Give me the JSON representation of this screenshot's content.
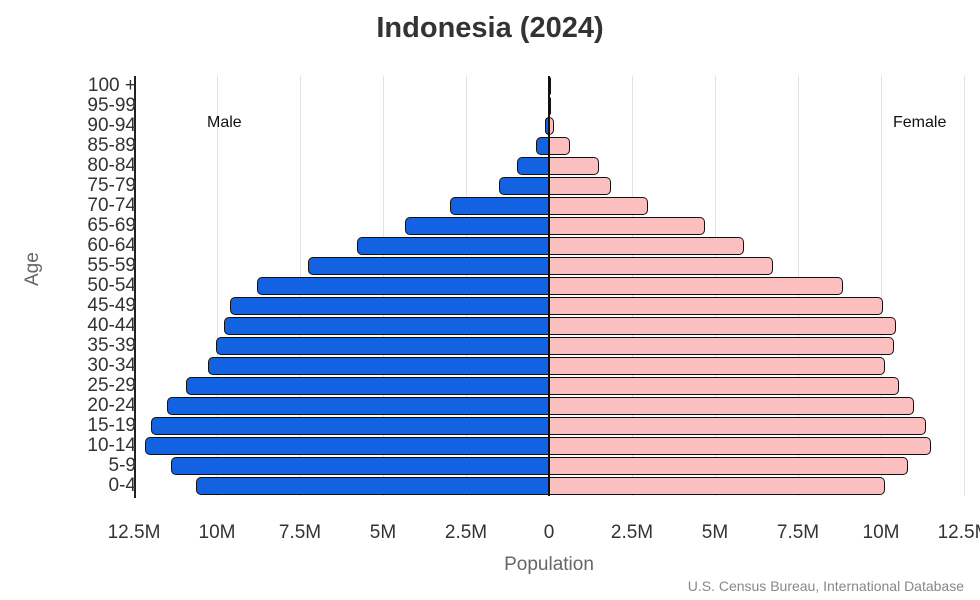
{
  "title": "Indonesia (2024)",
  "labels": {
    "male": "Male",
    "female": "Female",
    "xaxis": "Population",
    "yaxis": "Age",
    "source": "U.S. Census Bureau, International Database"
  },
  "colors": {
    "male": "#1262e2",
    "female": "#fbbfc0",
    "outline": "#111111"
  },
  "xticks": [
    "12.5M",
    "10M",
    "7.5M",
    "5M",
    "2.5M",
    "0",
    "2.5M",
    "5M",
    "7.5M",
    "10M",
    "12.5M"
  ],
  "chart_data": {
    "type": "bar",
    "subtype": "population-pyramid",
    "title": "Indonesia (2024)",
    "xlabel": "Population",
    "ylabel": "Age",
    "xlim": [
      -12500000,
      12500000
    ],
    "xtick_labels": [
      "12.5M",
      "10M",
      "7.5M",
      "5M",
      "2.5M",
      "0",
      "2.5M",
      "5M",
      "7.5M",
      "10M",
      "12.5M"
    ],
    "grid": "vertical",
    "legend": [
      "Male (left)",
      "Female (right)"
    ],
    "source": "U.S. Census Bureau, International Database",
    "categories": [
      "100 +",
      "95-99",
      "90-94",
      "85-89",
      "80-84",
      "75-79",
      "70-74",
      "65-69",
      "60-64",
      "55-59",
      "50-54",
      "45-49",
      "40-44",
      "35-39",
      "30-34",
      "25-29",
      "20-24",
      "15-19",
      "10-14",
      "5-9",
      "0-4"
    ],
    "series": [
      {
        "name": "Male",
        "unit": "millions",
        "values": [
          0.01,
          0.02,
          0.11,
          0.4,
          0.97,
          1.51,
          2.98,
          4.35,
          5.77,
          7.27,
          8.8,
          9.6,
          9.8,
          10.03,
          10.27,
          10.93,
          11.5,
          12.0,
          12.16,
          11.38,
          10.63
        ]
      },
      {
        "name": "Female",
        "unit": "millions",
        "values": [
          0.01,
          0.03,
          0.14,
          0.62,
          1.52,
          1.88,
          2.99,
          4.7,
          5.88,
          6.75,
          8.85,
          10.05,
          10.45,
          10.4,
          10.13,
          10.53,
          10.98,
          11.37,
          11.52,
          10.8,
          10.13
        ]
      }
    ]
  }
}
